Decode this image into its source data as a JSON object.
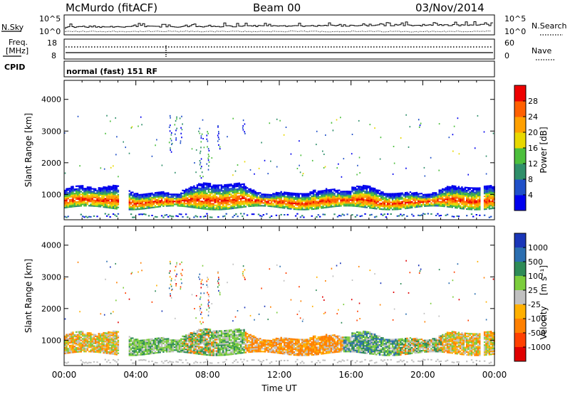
{
  "header": {
    "station": "McMurdo (fitACF)",
    "beam": "Beam 00",
    "date": "03/Nov/2014"
  },
  "top_strip": {
    "nsky_label": "N.Sky",
    "nsky_scale_hi": "10^5",
    "nsky_scale_lo": "10^0",
    "nsearch_label": "N.Search",
    "nsearch_scale_hi": "10^5",
    "nsearch_scale_lo": "10^0",
    "freq_label_1": "Freq.",
    "freq_label_2": "[MHz]",
    "freq_hi": "18",
    "freq_lo": "8",
    "nave_label": "Nave",
    "nave_hi": "60",
    "nave_lo": "0",
    "cpid_label": "CPID",
    "cpid_value": "normal (fast) 151 RF"
  },
  "chart_data": [
    {
      "type": "heatmap",
      "panel": "power",
      "ylabel": "Slant Range [km]",
      "xlabel": "",
      "y_ticks": [
        "1000",
        "2000",
        "3000",
        "4000"
      ],
      "ylim": [
        200,
        4600
      ],
      "xlim_hours": [
        0,
        24
      ],
      "colorbar": {
        "label": "Power [dB]",
        "ticks": [
          "4",
          "8",
          "12",
          "16",
          "20",
          "24",
          "28"
        ],
        "range": [
          0,
          30
        ],
        "colors": [
          "#0000ee",
          "#2050c8",
          "#2f8f6a",
          "#4cbf3c",
          "#e8d800",
          "#ffa000",
          "#ff6000",
          "#ee0000"
        ]
      }
    },
    {
      "type": "heatmap",
      "panel": "velocity",
      "ylabel": "Slant Range [km]",
      "xlabel": "Time UT",
      "x_ticks": [
        "00:00",
        "04:00",
        "08:00",
        "12:00",
        "16:00",
        "20:00",
        "00:00"
      ],
      "y_ticks": [
        "1000",
        "2000",
        "3000",
        "4000"
      ],
      "ylim": [
        200,
        4600
      ],
      "xlim_hours": [
        0,
        24
      ],
      "colorbar": {
        "label": "Velocity",
        "unit": "[m s⁻¹]",
        "ticks": [
          "1000",
          "500",
          "100",
          "25",
          "-25",
          "-100",
          "-500",
          "-1000"
        ],
        "colors": [
          "#1a36b8",
          "#2b6eb0",
          "#2e8b57",
          "#7ccd3c",
          "#c0c0c0",
          "#ffb000",
          "#ff8000",
          "#ff4000",
          "#e00000"
        ]
      }
    }
  ]
}
